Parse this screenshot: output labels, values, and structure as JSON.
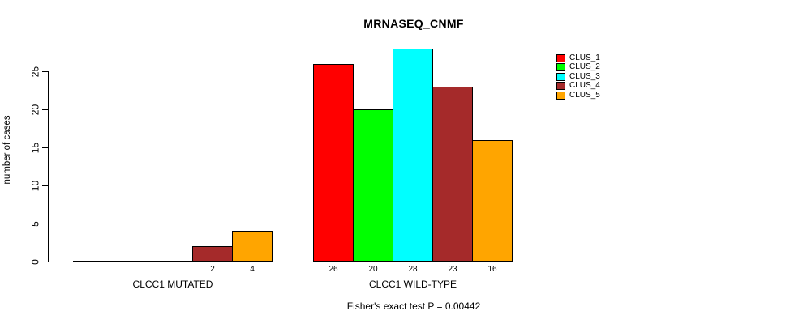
{
  "chart_data": {
    "type": "bar",
    "title": "MRNASEQ_CNMF",
    "ylabel": "number of cases",
    "xlabel": "",
    "groups": [
      "CLCC1 MUTATED",
      "CLCC1 WILD-TYPE"
    ],
    "series": [
      {
        "name": "CLUS_1",
        "color": "#ff0000",
        "values": [
          0,
          26
        ]
      },
      {
        "name": "CLUS_2",
        "color": "#00ff00",
        "values": [
          0,
          20
        ]
      },
      {
        "name": "CLUS_3",
        "color": "#00ffff",
        "values": [
          0,
          28
        ]
      },
      {
        "name": "CLUS_4",
        "color": "#a52a2a",
        "values": [
          2,
          23
        ]
      },
      {
        "name": "CLUS_5",
        "color": "#ffa500",
        "values": [
          4,
          16
        ]
      }
    ],
    "yticks": [
      0,
      5,
      10,
      15,
      20,
      25
    ],
    "ylim": [
      0,
      28
    ],
    "grid": false,
    "legend_position": "top-right",
    "bar_value_labels": "values shown below each bar; zero-value bars unlabeled",
    "annotation": "Fisher's exact test P = 0.00442"
  },
  "colors": {
    "background": "#ffffff",
    "axis": "#000000",
    "text": "#000000",
    "bar_border": "#000000"
  }
}
